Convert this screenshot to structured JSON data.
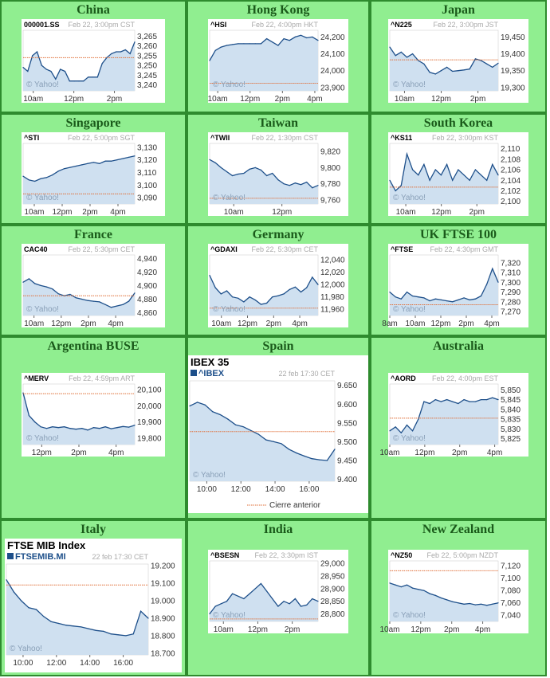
{
  "cells": [
    {
      "region": "China",
      "symbol": "000001.SS",
      "header": "Feb 22, 3:00pm CST",
      "yticks": [
        "3,265",
        "3,260",
        "3,255",
        "3,250",
        "3,245",
        "3,240"
      ],
      "xticks": [
        "10am",
        "12pm",
        "2pm"
      ],
      "watermark": "© Yahoo!"
    },
    {
      "region": "Hong Kong",
      "symbol": "^HSI",
      "header": "Feb 22, 4:00pm HKT",
      "yticks": [
        "24,200",
        "24,100",
        "24,000",
        "23,900"
      ],
      "xticks": [
        "10am",
        "12pm",
        "2pm",
        "4pm"
      ],
      "watermark": "© Yahoo!"
    },
    {
      "region": "Japan",
      "symbol": "^N225",
      "header": "Feb 22, 3:00pm JST",
      "yticks": [
        "19,450",
        "19,400",
        "19,350",
        "19,300"
      ],
      "xticks": [
        "10am",
        "12pm",
        "2pm"
      ],
      "watermark": "© Yahoo!"
    },
    {
      "region": "Singapore",
      "symbol": "^STI",
      "header": "Feb 22, 5:00pm SGT",
      "yticks": [
        "3,130",
        "3,120",
        "3,110",
        "3,100",
        "3,090"
      ],
      "xticks": [
        "10am",
        "12pm",
        "2pm",
        "4pm"
      ],
      "watermark": "© Yahoo!"
    },
    {
      "region": "Taiwan",
      "symbol": "^TWII",
      "header": "Feb 22, 1:30pm CST",
      "yticks": [
        "9,820",
        "9,800",
        "9,780",
        "9,760"
      ],
      "xticks": [
        "10am",
        "12pm"
      ],
      "watermark": "© Yahoo!"
    },
    {
      "region": "South Korea",
      "symbol": "^KS11",
      "header": "Feb 22, 3:00pm KST",
      "yticks": [
        "2,110",
        "2,108",
        "2,106",
        "2,104",
        "2,102",
        "2,100"
      ],
      "xticks": [
        "10am",
        "12pm",
        "2pm"
      ],
      "watermark": "© Yahoo!"
    },
    {
      "region": "France",
      "symbol": "CAC40",
      "header": "Feb 22, 5:30pm CET",
      "yticks": [
        "4,940",
        "4,920",
        "4,900",
        "4,880",
        "4,860"
      ],
      "xticks": [
        "10am",
        "12pm",
        "2pm",
        "4pm"
      ],
      "watermark": "© Yahoo!"
    },
    {
      "region": "Germany",
      "symbol": "^GDAXI",
      "header": "Feb 22, 5:30pm CET",
      "yticks": [
        "12,040",
        "12,020",
        "12,000",
        "11,980",
        "11,960"
      ],
      "xticks": [
        "10am",
        "12pm",
        "2pm",
        "4pm"
      ],
      "watermark": "© Yahoo!"
    },
    {
      "region": "UK FTSE 100",
      "symbol": "^FTSE",
      "header": "Feb 22, 4:30pm GMT",
      "yticks": [
        "7,320",
        "7,310",
        "7,300",
        "7,290",
        "7,280",
        "7,270"
      ],
      "xticks": [
        "8am",
        "10am",
        "12pm",
        "2pm",
        "4pm"
      ],
      "watermark": "© Yahoo!"
    },
    {
      "region": "Argentina BUSE",
      "symbol": "^MERV",
      "header": "Feb 22, 4:59pm ART",
      "yticks": [
        "20,100",
        "20,000",
        "19,900",
        "19,800"
      ],
      "xticks": [
        "12pm",
        "2pm",
        "4pm"
      ],
      "watermark": "© Yahoo!"
    },
    {
      "region": "Spain",
      "big_title": "IBEX 35",
      "symbol": "^IBEX",
      "header": "22 feb 17:30 CET",
      "yticks": [
        "9.650",
        "9.600",
        "9.550",
        "9.500",
        "9.450",
        "9.400"
      ],
      "xticks": [
        "10:00",
        "12:00",
        "14:00",
        "16:00"
      ],
      "watermark": "© Yahoo!",
      "legend": "Cierre anterior"
    },
    {
      "region": "Australia",
      "symbol": "^AORD",
      "header": "Feb 22, 4:00pm EST",
      "yticks": [
        "5,850",
        "5,845",
        "5,840",
        "5,835",
        "5,830",
        "5,825"
      ],
      "xticks": [
        "10am",
        "12pm",
        "2pm",
        "4pm"
      ],
      "watermark": "© Yahoo!"
    },
    {
      "region": "Italy",
      "big_title": "FTSE MIB Index",
      "symbol": "FTSEMIB.MI",
      "header": "22 feb 17:30 CET",
      "yticks": [
        "19.200",
        "19.100",
        "19.000",
        "18.900",
        "18.800",
        "18.700"
      ],
      "xticks": [
        "10:00",
        "12:00",
        "14:00",
        "16:00"
      ],
      "watermark": "© Yahoo!"
    },
    {
      "region": "India",
      "symbol": "^BSESN",
      "header": "Feb 22, 3:30pm IST",
      "yticks": [
        "29,000",
        "28,950",
        "28,900",
        "28,850",
        "28,800"
      ],
      "xticks": [
        "10am",
        "12pm",
        "2pm"
      ],
      "watermark": "© Yahoo!"
    },
    {
      "region": "New Zealand",
      "symbol": "^NZ50",
      "header": "Feb 22, 5:00pm NZDT",
      "yticks": [
        "7,120",
        "7,100",
        "7,080",
        "7,060",
        "7,040"
      ],
      "xticks": [
        "10am",
        "12pm",
        "2pm",
        "4pm"
      ],
      "watermark": "© Yahoo!"
    }
  ],
  "chart_data": [
    {
      "type": "area",
      "title": "000001.SS",
      "ylim": [
        3237,
        3268
      ],
      "prev_close": 3254,
      "x_start": 9.5,
      "x_end": 15,
      "xtick_values": [
        10,
        12,
        14
      ],
      "values": [
        3249,
        3247,
        3255,
        3257,
        3250,
        3248,
        3247,
        3243,
        3248,
        3247,
        3242,
        3242,
        3242,
        3242,
        3244,
        3244,
        3244,
        3251,
        3254,
        3256,
        3257,
        3257,
        3258,
        3256,
        3262
      ]
    },
    {
      "type": "area",
      "title": "^HSI",
      "ylim": [
        23880,
        24240
      ],
      "prev_close": 23925,
      "x_start": 9.5,
      "x_end": 16.2,
      "xtick_values": [
        10,
        12,
        14,
        16
      ],
      "values": [
        24060,
        24120,
        24140,
        24150,
        24155,
        24160,
        24160,
        24160,
        24160,
        24160,
        24190,
        24170,
        24150,
        24190,
        24180,
        24200,
        24210,
        24195,
        24200,
        24180
      ]
    },
    {
      "type": "area",
      "title": "^N225",
      "ylim": [
        19290,
        19470
      ],
      "prev_close": 19382,
      "x_start": 9.2,
      "x_end": 15.1,
      "xtick_values": [
        10,
        12,
        14
      ],
      "values": [
        19420,
        19395,
        19405,
        19390,
        19400,
        19380,
        19370,
        19345,
        19340,
        19350,
        19360,
        19348,
        19350,
        19352,
        19355,
        19385,
        19380,
        19370,
        19360,
        19372
      ]
    },
    {
      "type": "area",
      "title": "^STI",
      "ylim": [
        3085,
        3133
      ],
      "prev_close": 3093,
      "x_start": 9.2,
      "x_end": 17.2,
      "xtick_values": [
        10,
        12,
        14,
        16
      ],
      "values": [
        3107,
        3104,
        3103,
        3105,
        3106,
        3108,
        3111,
        3113,
        3114,
        3115,
        3116,
        3117,
        3118,
        3117,
        3119,
        3119,
        3120,
        3121,
        3122,
        3123
      ]
    },
    {
      "type": "area",
      "title": "^TWII",
      "ylim": [
        9755,
        9830
      ],
      "prev_close": 9762,
      "x_start": 9,
      "x_end": 13.5,
      "xtick_values": [
        10,
        12
      ],
      "values": [
        9810,
        9806,
        9800,
        9795,
        9790,
        9792,
        9793,
        9798,
        9800,
        9797,
        9790,
        9793,
        9785,
        9780,
        9778,
        9781,
        9779,
        9782,
        9775,
        9778
      ]
    },
    {
      "type": "area",
      "title": "^KS11",
      "ylim": [
        2099.5,
        2111
      ],
      "prev_close": 2102.7,
      "x_start": 9.1,
      "x_end": 15.2,
      "xtick_values": [
        10,
        12,
        14
      ],
      "values": [
        2104,
        2102,
        2103,
        2109,
        2106,
        2105,
        2107,
        2104,
        2106,
        2105,
        2107,
        2104,
        2106,
        2105,
        2104,
        2106,
        2105,
        2104,
        2107,
        2105
      ]
    },
    {
      "type": "area",
      "title": "CAC40",
      "ylim": [
        4856,
        4945
      ],
      "prev_close": 4885,
      "x_start": 9.2,
      "x_end": 17.4,
      "xtick_values": [
        10,
        12,
        14,
        16
      ],
      "values": [
        4905,
        4910,
        4903,
        4900,
        4898,
        4895,
        4888,
        4885,
        4887,
        4882,
        4880,
        4878,
        4877,
        4876,
        4872,
        4868,
        4870,
        4872,
        4877,
        4889
      ]
    },
    {
      "type": "area",
      "title": "^GDAXI",
      "ylim": [
        11950,
        12048
      ],
      "prev_close": 11962,
      "x_start": 9.1,
      "x_end": 17.4,
      "xtick_values": [
        10,
        12,
        14,
        16
      ],
      "values": [
        12015,
        11995,
        11985,
        11990,
        11980,
        11978,
        11972,
        11980,
        11975,
        11968,
        11970,
        11980,
        11982,
        11985,
        11992,
        11996,
        11988,
        11995,
        12012,
        12000
      ]
    },
    {
      "type": "area",
      "title": "^FTSE",
      "ylim": [
        7266,
        7328
      ],
      "prev_close": 7277,
      "x_start": 8,
      "x_end": 16.5,
      "xtick_values": [
        8,
        10,
        12,
        14,
        16
      ],
      "values": [
        7290,
        7285,
        7283,
        7290,
        7286,
        7285,
        7284,
        7281,
        7283,
        7282,
        7281,
        7280,
        7282,
        7284,
        7282,
        7283,
        7286,
        7298,
        7314,
        7300
      ]
    },
    {
      "type": "area",
      "title": "^MERV",
      "ylim": [
        19760,
        20135
      ],
      "prev_close": 20075,
      "x_start": 11,
      "x_end": 17,
      "xtick_values": [
        12,
        14,
        16
      ],
      "values": [
        20080,
        19940,
        19900,
        19870,
        19860,
        19870,
        19865,
        19870,
        19860,
        19855,
        19860,
        19850,
        19865,
        19860,
        19870,
        19858,
        19865,
        19872,
        19868,
        19880
      ]
    },
    {
      "type": "area",
      "title": "IBEX 35",
      "ylim": [
        9395,
        9662
      ],
      "prev_close": 9527,
      "x_start": 9,
      "x_end": 17.5,
      "xtick_values": [
        10,
        12,
        14,
        16
      ],
      "values": [
        9595,
        9605,
        9598,
        9580,
        9572,
        9560,
        9545,
        9540,
        9530,
        9520,
        9505,
        9500,
        9495,
        9480,
        9470,
        9462,
        9455,
        9452,
        9450,
        9480
      ]
    },
    {
      "type": "area",
      "title": "^AORD",
      "ylim": [
        5822,
        5853
      ],
      "prev_close": 5835.5,
      "x_start": 10,
      "x_end": 16.2,
      "xtick_values": [
        10,
        12,
        14,
        16
      ],
      "values": [
        5829,
        5831,
        5828,
        5832,
        5829,
        5835,
        5844,
        5843,
        5845,
        5844,
        5845,
        5844,
        5843,
        5845,
        5844,
        5844,
        5845,
        5845,
        5846,
        5845
      ]
    },
    {
      "type": "area",
      "title": "FTSE MIB Index",
      "ylim": [
        18690,
        19210
      ],
      "prev_close": 19090,
      "x_start": 9,
      "x_end": 17.5,
      "xtick_values": [
        10,
        12,
        14,
        16
      ],
      "values": [
        19120,
        19050,
        19000,
        18960,
        18950,
        18910,
        18880,
        18870,
        18860,
        18855,
        18850,
        18840,
        18830,
        18825,
        18810,
        18805,
        18800,
        18810,
        18940,
        18900
      ]
    },
    {
      "type": "area",
      "title": "^BSESN",
      "ylim": [
        28770,
        29010
      ],
      "prev_close": 28780,
      "x_start": 9.2,
      "x_end": 15.5,
      "xtick_values": [
        10,
        12,
        14
      ],
      "values": [
        28800,
        28830,
        28840,
        28850,
        28880,
        28870,
        28860,
        28880,
        28900,
        28920,
        28890,
        28860,
        28830,
        28850,
        28840,
        28860,
        28830,
        28835,
        28860,
        28850
      ]
    },
    {
      "type": "area",
      "title": "^NZ50",
      "ylim": [
        7030,
        7128
      ],
      "prev_close": 7112,
      "x_start": 10,
      "x_end": 17,
      "xtick_values": [
        10,
        12,
        14,
        16
      ],
      "values": [
        7092,
        7089,
        7086,
        7089,
        7084,
        7082,
        7080,
        7075,
        7072,
        7068,
        7065,
        7062,
        7060,
        7058,
        7059,
        7057,
        7058,
        7056,
        7058,
        7060
      ]
    }
  ]
}
